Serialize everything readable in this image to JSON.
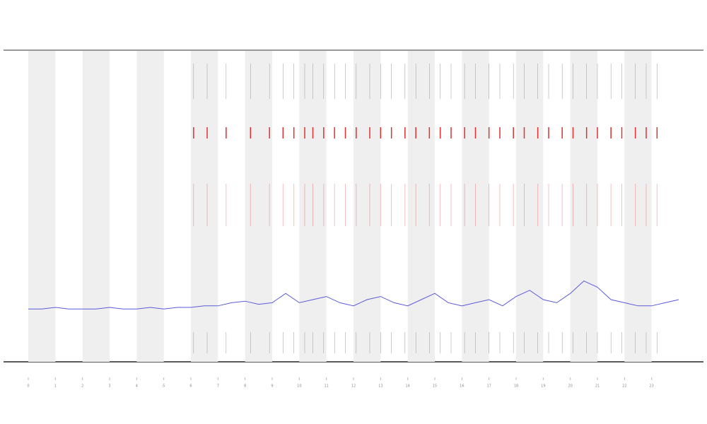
{
  "chart_data": {
    "type": "line",
    "x": [
      0,
      0.5,
      1,
      1.5,
      2,
      2.5,
      3,
      3.5,
      4,
      4.5,
      5,
      5.5,
      6,
      6.5,
      7,
      7.5,
      8,
      8.5,
      9,
      9.5,
      10,
      10.5,
      11,
      11.5,
      12,
      12.5,
      13,
      13.5,
      14,
      14.5,
      15,
      15.5,
      16,
      16.5,
      17,
      17.5,
      18,
      18.5,
      19,
      19.5,
      20,
      20.5,
      21,
      21.5,
      22,
      22.5,
      23,
      23.5,
      24
    ],
    "series": [
      {
        "color": "#5a5adc",
        "values": [
          17,
          17,
          17.5,
          17,
          17,
          17,
          17.5,
          17,
          17,
          17.5,
          17,
          17.5,
          17.5,
          18,
          18,
          19,
          19.5,
          18.5,
          19,
          22,
          19,
          20,
          21,
          19,
          18,
          20,
          21,
          19,
          18,
          20,
          22,
          19,
          18,
          19,
          20,
          18,
          21,
          23,
          20,
          19,
          22,
          26,
          24,
          20,
          19,
          18,
          18,
          19,
          20
        ]
      }
    ],
    "events": [
      6.1,
      6.6,
      7.3,
      8.2,
      8.9,
      9.4,
      9.8,
      10.2,
      10.5,
      10.9,
      11.3,
      11.7,
      12.1,
      12.6,
      13.0,
      13.4,
      13.9,
      14.3,
      14.8,
      15.2,
      15.6,
      16.1,
      16.5,
      17.0,
      17.4,
      17.9,
      18.3,
      18.8,
      19.2,
      19.7,
      20.1,
      20.6,
      21.0,
      21.5,
      21.9,
      22.4,
      22.8,
      23.2
    ],
    "event_color": "#e03030",
    "xlim": [
      0,
      24
    ],
    "xticks": [
      0,
      1,
      2,
      3,
      4,
      5,
      6,
      7,
      8,
      9,
      10,
      11,
      12,
      13,
      14,
      15,
      16,
      17,
      18,
      19,
      20,
      21,
      22,
      23
    ],
    "ylim": [
      0,
      100
    ],
    "shade_alternate": true
  }
}
